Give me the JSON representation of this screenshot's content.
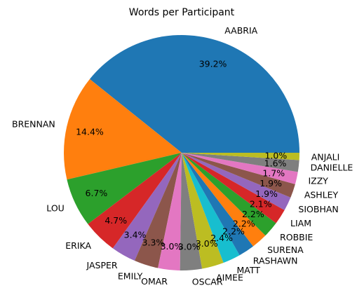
{
  "chart_data": {
    "type": "pie",
    "title": "Words per Participant",
    "start_angle_deg": 0,
    "direction": "counterclockwise",
    "slices": [
      {
        "label": "AABRIA",
        "value": 39.2,
        "pct_label": "39.2%",
        "color": "#1f77b4"
      },
      {
        "label": "BRENNAN",
        "value": 14.4,
        "pct_label": "14.4%",
        "color": "#ff7f0e"
      },
      {
        "label": "LOU",
        "value": 6.7,
        "pct_label": "6.7%",
        "color": "#2ca02c"
      },
      {
        "label": "ERIKA",
        "value": 4.7,
        "pct_label": "4.7%",
        "color": "#d62728"
      },
      {
        "label": "JASPER",
        "value": 3.4,
        "pct_label": "3.4%",
        "color": "#9467bd"
      },
      {
        "label": "EMILY",
        "value": 3.3,
        "pct_label": "3.3%",
        "color": "#8c564b"
      },
      {
        "label": "OMAR",
        "value": 3.0,
        "pct_label": "3.0%",
        "color": "#e377c2"
      },
      {
        "label": "OSCAR",
        "value": 3.0,
        "pct_label": "3.0%",
        "color": "#7f7f7f"
      },
      {
        "label": "AIMEE",
        "value": 3.0,
        "pct_label": "3.0%",
        "color": "#bcbd22"
      },
      {
        "label": "MATT",
        "value": 2.4,
        "pct_label": "2.4%",
        "color": "#17becf"
      },
      {
        "label": "RASHAWN",
        "value": 2.2,
        "pct_label": "2.2%",
        "color": "#1f77b4"
      },
      {
        "label": "SURENA",
        "value": 2.2,
        "pct_label": "2.2%",
        "color": "#ff7f0e"
      },
      {
        "label": "ROBBIE",
        "value": 2.2,
        "pct_label": "2.2%",
        "color": "#2ca02c"
      },
      {
        "label": "LIAM",
        "value": 2.1,
        "pct_label": "2.1%",
        "color": "#d62728"
      },
      {
        "label": "SIOBHAN",
        "value": 1.9,
        "pct_label": "1.9%",
        "color": "#9467bd"
      },
      {
        "label": "ASHLEY",
        "value": 1.9,
        "pct_label": "1.9%",
        "color": "#8c564b"
      },
      {
        "label": "IZZY",
        "value": 1.7,
        "pct_label": "1.7%",
        "color": "#e377c2"
      },
      {
        "label": "DANIELLE",
        "value": 1.6,
        "pct_label": "1.6%",
        "color": "#7f7f7f"
      },
      {
        "label": "ANJALI",
        "value": 1.0,
        "pct_label": "1.0%",
        "color": "#bcbd22"
      }
    ]
  }
}
